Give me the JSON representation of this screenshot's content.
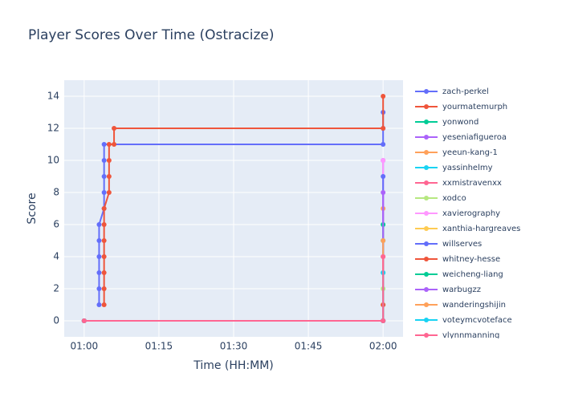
{
  "chart_data": {
    "type": "line",
    "title": "Player Scores Over Time (Ostracize)",
    "x_label": "Time (HH:MM)",
    "y_label": "Score",
    "xlim": [
      "00:56",
      "02:04"
    ],
    "xticks": [
      "01:00",
      "01:15",
      "01:30",
      "01:45",
      "02:00"
    ],
    "ylim": [
      -1,
      15
    ],
    "yticks": [
      0,
      2,
      4,
      6,
      8,
      10,
      12,
      14
    ],
    "grid": true,
    "line_shape": "step",
    "series": [
      {
        "name": "zach-perkel",
        "color": "#636efa",
        "x": [
          "01:03",
          "01:03",
          "01:03",
          "01:03",
          "01:03",
          "01:03",
          "01:04",
          "01:04",
          "01:04",
          "01:04",
          "01:04",
          "02:00",
          "02:00",
          "02:00"
        ],
        "values": [
          1,
          2,
          3,
          4,
          5,
          6,
          7,
          8,
          9,
          10,
          11,
          11,
          12,
          13
        ]
      },
      {
        "name": "yourmatemurph",
        "color": "#ef553b",
        "x": [
          "01:04",
          "01:04",
          "01:04",
          "01:04",
          "01:04",
          "01:04",
          "01:04",
          "01:05",
          "01:05",
          "01:05",
          "01:05",
          "01:06",
          "01:06",
          "02:00",
          "02:00"
        ],
        "values": [
          1,
          2,
          3,
          4,
          5,
          6,
          7,
          8,
          9,
          10,
          11,
          11,
          12,
          12,
          14
        ]
      },
      {
        "name": "yonwond",
        "color": "#00cc96",
        "x": [
          "01:00",
          "02:00",
          "02:00"
        ],
        "values": [
          0,
          0,
          5
        ]
      },
      {
        "name": "yeseniafigueroa",
        "color": "#ab63fa",
        "x": [
          "01:00",
          "02:00",
          "02:00"
        ],
        "values": [
          0,
          0,
          10
        ]
      },
      {
        "name": "yeeun-kang-1",
        "color": "#ffa15a",
        "x": [
          "01:00",
          "02:00",
          "02:00"
        ],
        "values": [
          0,
          0,
          7
        ]
      },
      {
        "name": "yassinhelmy",
        "color": "#19d3f3",
        "x": [
          "01:00",
          "02:00",
          "02:00"
        ],
        "values": [
          0,
          0,
          3
        ]
      },
      {
        "name": "xxmistravenxx",
        "color": "#ff6692",
        "x": [
          "01:00",
          "02:00",
          "02:00"
        ],
        "values": [
          0,
          0,
          4
        ]
      },
      {
        "name": "xodco",
        "color": "#b6e880",
        "x": [
          "01:00",
          "02:00",
          "02:00"
        ],
        "values": [
          0,
          0,
          2
        ]
      },
      {
        "name": "xavierography",
        "color": "#ff97ff",
        "x": [
          "01:00",
          "02:00",
          "02:00"
        ],
        "values": [
          0,
          0,
          10
        ]
      },
      {
        "name": "xanthia-hargreaves",
        "color": "#fecb52",
        "x": [
          "01:00",
          "02:00",
          "02:00"
        ],
        "values": [
          0,
          0,
          1
        ]
      },
      {
        "name": "willserves",
        "color": "#636efa",
        "x": [
          "01:00",
          "02:00",
          "02:00"
        ],
        "values": [
          0,
          0,
          9
        ]
      },
      {
        "name": "whitney-hesse",
        "color": "#ef553b",
        "x": [
          "01:00",
          "02:00",
          "02:00"
        ],
        "values": [
          0,
          0,
          1
        ]
      },
      {
        "name": "weicheng-liang",
        "color": "#00cc96",
        "x": [
          "01:00",
          "02:00",
          "02:00"
        ],
        "values": [
          0,
          0,
          6
        ]
      },
      {
        "name": "warbugzz",
        "color": "#ab63fa",
        "x": [
          "01:00",
          "02:00",
          "02:00"
        ],
        "values": [
          0,
          0,
          8
        ]
      },
      {
        "name": "wanderingshijin",
        "color": "#ffa15a",
        "x": [
          "01:00",
          "02:00",
          "02:00"
        ],
        "values": [
          0,
          0,
          5
        ]
      },
      {
        "name": "voteymcvoteface",
        "color": "#19d3f3",
        "x": [
          "01:00",
          "02:00",
          "02:00"
        ],
        "values": [
          0,
          0,
          3
        ]
      },
      {
        "name": "vlynnmanning",
        "color": "#ff6692",
        "x": [
          "01:00",
          "02:00",
          "02:00"
        ],
        "values": [
          0,
          0,
          4
        ]
      }
    ]
  }
}
